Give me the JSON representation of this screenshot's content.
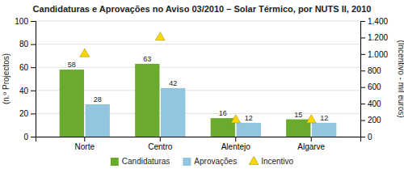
{
  "chart_data": {
    "type": "bar",
    "title": "Candidaturas e Aprovações no Aviso 03/2010 – Solar Térmico, por NUTS II, 2010",
    "categories": [
      "Norte",
      "Centro",
      "Alentejo",
      "Algarve"
    ],
    "series": [
      {
        "name": "Candidaturas",
        "color": "#6AAB2E",
        "values": [
          58,
          63,
          16,
          15
        ],
        "data_labels": true
      },
      {
        "name": "Aprovações",
        "color": "#92C5DE",
        "values": [
          28,
          42,
          12,
          12
        ],
        "data_labels": true
      },
      {
        "name": "Incentivo",
        "type": "scatter",
        "marker": "triangle",
        "color": "#FFD700",
        "axis": "y2",
        "values": [
          1000,
          1200,
          200,
          200
        ]
      }
    ],
    "ylabel": "(n.º Projectos)",
    "y2label": "(Incentivo - mil euros)",
    "ylim": [
      0,
      100
    ],
    "yticks": [
      0,
      20,
      40,
      60,
      80,
      100
    ],
    "y2lim": [
      0,
      1400
    ],
    "y2ticks": [
      0,
      200,
      400,
      600,
      800,
      {
        "value": 1000,
        "label": "1.000"
      },
      {
        "value": 1200,
        "label": "1.200"
      },
      {
        "value": 1400,
        "label": "1.400"
      }
    ],
    "grid": true,
    "legend": "bottom"
  }
}
